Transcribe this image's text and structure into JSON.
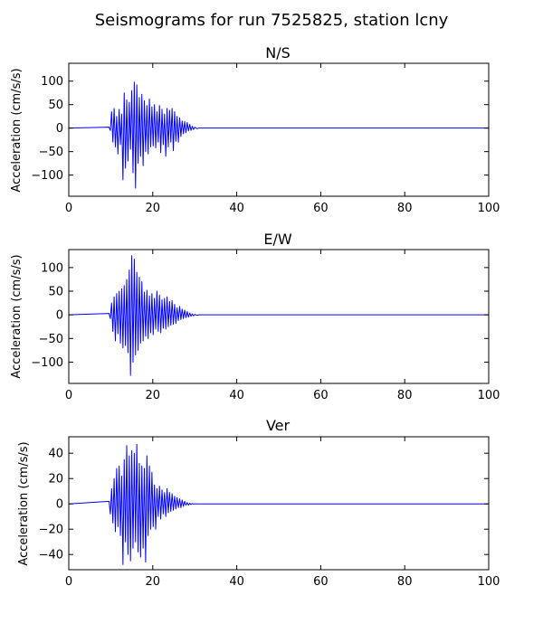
{
  "figure": {
    "title": "Seismograms for run 7525825, station lcny"
  },
  "chart_data": [
    {
      "type": "line",
      "title": "N/S",
      "xlabel": "",
      "ylabel": "Acceleration (cm/s/s)",
      "xlim": [
        0,
        100
      ],
      "ylim": [
        -145,
        138
      ],
      "xticks": [
        0,
        20,
        40,
        60,
        80,
        100
      ],
      "yticks": [
        -100,
        -50,
        0,
        50,
        100
      ],
      "grid": false,
      "series": [
        {
          "color": "#0000ff",
          "x": [
            0,
            9.6,
            9.9,
            10.2,
            10.5,
            10.8,
            11.1,
            11.4,
            11.7,
            12.0,
            12.3,
            12.6,
            12.9,
            13.2,
            13.5,
            13.8,
            14.1,
            14.4,
            14.7,
            15.0,
            15.3,
            15.6,
            15.9,
            16.2,
            16.5,
            16.8,
            17.1,
            17.4,
            17.7,
            18.0,
            18.3,
            18.6,
            18.9,
            19.2,
            19.5,
            19.8,
            20.1,
            20.4,
            20.7,
            21.0,
            21.3,
            21.6,
            21.9,
            22.2,
            22.5,
            22.8,
            23.1,
            23.4,
            23.7,
            24.0,
            24.3,
            24.6,
            24.9,
            25.2,
            25.5,
            25.8,
            26.1,
            26.4,
            26.7,
            27.0,
            27.3,
            27.6,
            27.9,
            28.2,
            28.5,
            28.8,
            29.1,
            29.4,
            29.7,
            30.0,
            30.5,
            31.0,
            100
          ],
          "y": [
            0,
            2,
            -5,
            35,
            -30,
            42,
            -40,
            25,
            -55,
            40,
            -35,
            30,
            -110,
            75,
            -85,
            60,
            -70,
            55,
            -45,
            80,
            -95,
            98,
            -128,
            92,
            -75,
            65,
            -60,
            72,
            -80,
            58,
            -50,
            48,
            -55,
            62,
            -40,
            45,
            -38,
            50,
            -42,
            35,
            -30,
            48,
            -52,
            40,
            -35,
            30,
            -60,
            42,
            -40,
            38,
            -30,
            42,
            -48,
            35,
            -28,
            25,
            -30,
            22,
            -18,
            15,
            -12,
            14,
            -10,
            12,
            -6,
            8,
            -5,
            4,
            -3,
            2,
            -1,
            0,
            0
          ]
        }
      ]
    },
    {
      "type": "line",
      "title": "E/W",
      "xlabel": "",
      "ylabel": "Acceleration (cm/s/s)",
      "xlim": [
        0,
        100
      ],
      "ylim": [
        -145,
        138
      ],
      "xticks": [
        0,
        20,
        40,
        60,
        80,
        100
      ],
      "yticks": [
        -100,
        -50,
        0,
        50,
        100
      ],
      "grid": false,
      "series": [
        {
          "color": "#0000ff",
          "x": [
            0,
            9.6,
            9.9,
            10.2,
            10.5,
            10.8,
            11.1,
            11.4,
            11.7,
            12.0,
            12.3,
            12.6,
            12.9,
            13.2,
            13.5,
            13.8,
            14.1,
            14.4,
            14.7,
            15.0,
            15.3,
            15.6,
            15.9,
            16.2,
            16.5,
            16.8,
            17.1,
            17.4,
            17.7,
            18.0,
            18.3,
            18.6,
            18.9,
            19.2,
            19.5,
            19.8,
            20.1,
            20.4,
            20.7,
            21.0,
            21.3,
            21.6,
            21.9,
            22.2,
            22.5,
            22.8,
            23.1,
            23.4,
            23.7,
            24.0,
            24.3,
            24.6,
            24.9,
            25.2,
            25.5,
            25.8,
            26.1,
            26.4,
            26.7,
            27.0,
            27.3,
            27.6,
            27.9,
            28.2,
            28.5,
            28.8,
            29.1,
            29.4,
            29.7,
            30.0,
            30.5,
            31.0,
            100
          ],
          "y": [
            0,
            3,
            -8,
            25,
            -35,
            38,
            -55,
            45,
            -40,
            50,
            -60,
            55,
            -70,
            62,
            -65,
            75,
            -80,
            95,
            -128,
            125,
            -100,
            118,
            -85,
            90,
            -75,
            80,
            -60,
            70,
            -55,
            48,
            -45,
            52,
            -50,
            40,
            -38,
            45,
            -42,
            35,
            -30,
            50,
            -35,
            42,
            -38,
            32,
            -28,
            35,
            -30,
            38,
            -25,
            28,
            -22,
            30,
            -20,
            22,
            -18,
            15,
            -12,
            18,
            -10,
            12,
            -8,
            10,
            -6,
            7,
            -5,
            4,
            -3,
            2,
            -2,
            1,
            -1,
            0,
            0
          ]
        }
      ]
    },
    {
      "type": "line",
      "title": "Ver",
      "xlabel": "",
      "ylabel": "Acceleration (cm/s/s)",
      "xlim": [
        0,
        100
      ],
      "ylim": [
        -52,
        53
      ],
      "xticks": [
        0,
        20,
        40,
        60,
        80,
        100
      ],
      "yticks": [
        -40,
        -20,
        0,
        20,
        40
      ],
      "grid": false,
      "series": [
        {
          "color": "#0000ff",
          "x": [
            0,
            9.6,
            9.9,
            10.2,
            10.5,
            10.8,
            11.1,
            11.4,
            11.7,
            12.0,
            12.3,
            12.6,
            12.9,
            13.2,
            13.5,
            13.8,
            14.1,
            14.4,
            14.7,
            15.0,
            15.3,
            15.6,
            15.9,
            16.2,
            16.5,
            16.8,
            17.1,
            17.4,
            17.7,
            18.0,
            18.3,
            18.6,
            18.9,
            19.2,
            19.5,
            19.8,
            20.1,
            20.4,
            20.7,
            21.0,
            21.3,
            21.6,
            21.9,
            22.2,
            22.5,
            22.8,
            23.1,
            23.4,
            23.7,
            24.0,
            24.3,
            24.6,
            24.9,
            25.2,
            25.5,
            25.8,
            26.1,
            26.4,
            26.7,
            27.0,
            27.3,
            27.6,
            27.9,
            28.2,
            28.5,
            28.8,
            29.1,
            29.4,
            29.7,
            30.0,
            30.5,
            31.0,
            100
          ],
          "y": [
            0,
            2,
            -8,
            12,
            -15,
            20,
            -22,
            28,
            -18,
            30,
            -25,
            22,
            -48,
            35,
            -30,
            46,
            -40,
            38,
            -45,
            42,
            -35,
            40,
            -30,
            47,
            -38,
            32,
            -42,
            30,
            -35,
            28,
            -46,
            38,
            -25,
            30,
            -20,
            25,
            -18,
            15,
            -20,
            12,
            -10,
            14,
            -12,
            11,
            -8,
            9,
            -10,
            12,
            -7,
            9,
            -6,
            8,
            -5,
            6,
            -4,
            5,
            -3,
            4,
            -3,
            3,
            -2,
            2,
            -1,
            1,
            -1,
            0.5,
            -0.5,
            0.3,
            -0.2,
            0.1,
            0,
            0,
            0
          ]
        }
      ]
    }
  ]
}
